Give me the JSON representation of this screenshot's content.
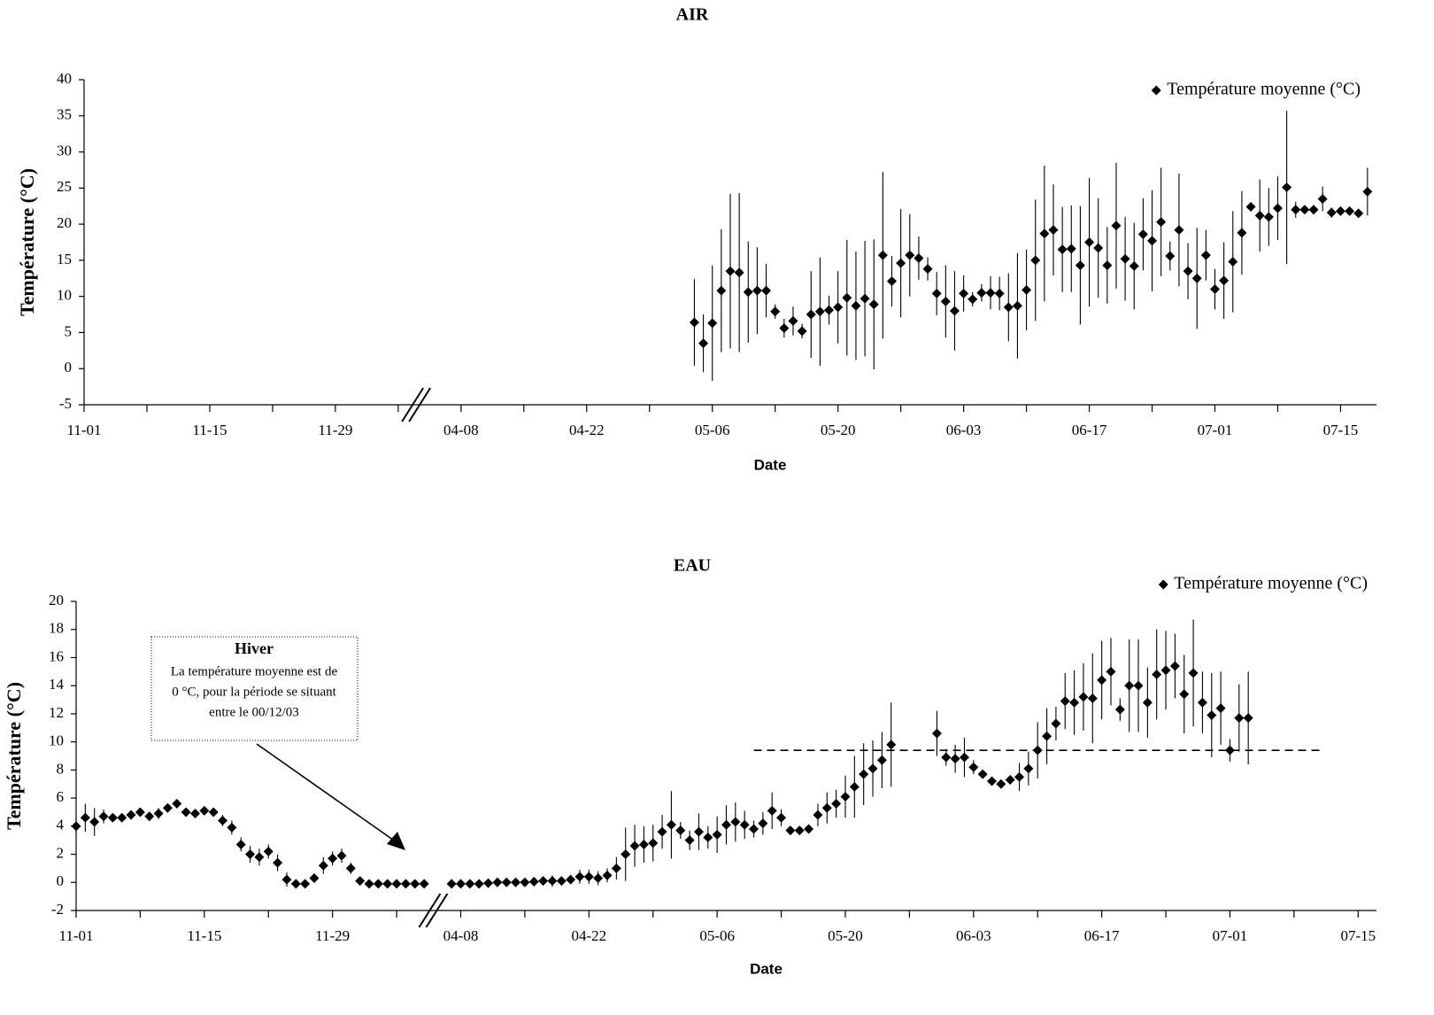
{
  "chart_data": [
    {
      "type": "scatter",
      "title": "AIR",
      "xlabel": "Date",
      "ylabel": "Température (°C)",
      "xlim": [
        "11-01",
        "07-19"
      ],
      "xticks": [
        "11-01",
        "11-15",
        "11-29",
        "04-08",
        "04-22",
        "05-06",
        "05-20",
        "06-03",
        "06-17",
        "07-01",
        "07-15"
      ],
      "axis_break": [
        "12-08",
        "04-03"
      ],
      "ylim": [
        -5,
        40
      ],
      "yticks": [
        -5,
        0,
        5,
        10,
        15,
        20,
        25,
        30,
        35,
        40
      ],
      "grid": false,
      "legend": "upper right",
      "series": [
        {
          "name": "Température moyenne (°C)",
          "color": "#000000",
          "marker": "diamond",
          "x": [
            "05-04",
            "05-05",
            "05-06",
            "05-07",
            "05-08",
            "05-09",
            "05-10",
            "05-11",
            "05-12",
            "05-13",
            "05-14",
            "05-15",
            "05-16",
            "05-17",
            "05-18",
            "05-19",
            "05-20",
            "05-21",
            "05-22",
            "05-23",
            "05-24",
            "05-25",
            "05-26",
            "05-27",
            "05-28",
            "05-29",
            "05-30",
            "05-31",
            "06-01",
            "06-02",
            "06-03",
            "06-04",
            "06-05",
            "06-06",
            "06-07",
            "06-08",
            "06-09",
            "06-10",
            "06-11",
            "06-12",
            "06-13",
            "06-14",
            "06-15",
            "06-16",
            "06-17",
            "06-18",
            "06-19",
            "06-20",
            "06-21",
            "06-22",
            "06-23",
            "06-24",
            "06-25",
            "06-26",
            "06-27",
            "06-28",
            "06-29",
            "06-30",
            "07-01",
            "07-02",
            "07-03",
            "07-04",
            "07-05",
            "07-06",
            "07-07",
            "07-08",
            "07-09",
            "07-10",
            "07-11",
            "07-12",
            "07-13",
            "07-14",
            "07-15",
            "07-16",
            "07-17",
            "07-18"
          ],
          "values": [
            6.4,
            3.5,
            6.3,
            10.8,
            13.5,
            13.3,
            10.6,
            10.8,
            10.8,
            7.9,
            5.6,
            6.6,
            5.2,
            7.5,
            7.9,
            8.1,
            8.5,
            9.8,
            8.7,
            9.7,
            8.9,
            15.7,
            12.1,
            14.6,
            15.7,
            15.3,
            13.8,
            10.4,
            9.3,
            8.0,
            10.4,
            9.6,
            10.5,
            10.5,
            10.4,
            8.5,
            8.7,
            10.9,
            15.0,
            18.7,
            19.2,
            16.5,
            16.6,
            14.3,
            17.5,
            16.7,
            14.3,
            19.8,
            15.2,
            14.2,
            18.6,
            17.7,
            20.3,
            15.6,
            19.2,
            13.5,
            12.5,
            15.7,
            11.0,
            12.2,
            14.8,
            18.8,
            22.4,
            21.2,
            21.0,
            22.2,
            25.1,
            22.0,
            22.0,
            22.0,
            23.5,
            21.6,
            21.8,
            21.8,
            21.5,
            24.5
          ],
          "errors": [
            6,
            4,
            8,
            8.5,
            10.7,
            11,
            7,
            6,
            3.7,
            1,
            1.3,
            2,
            1,
            6,
            7.5,
            2,
            5,
            8,
            7.5,
            8,
            9,
            11.5,
            3.5,
            7.5,
            5.7,
            3,
            1.6,
            3,
            5,
            5.5,
            2.5,
            1,
            1.2,
            2.3,
            2.3,
            4.7,
            7.3,
            5.6,
            8.4,
            9.4,
            6.3,
            5.9,
            6,
            8.2,
            8.9,
            6.9,
            5.3,
            8.7,
            5.8,
            6,
            5,
            7,
            7.5,
            2,
            7.8,
            3.9,
            7,
            3.5,
            2.8,
            5.3,
            7,
            5.8,
            0.5,
            5,
            4,
            4.4,
            10.6,
            1.1,
            0.4,
            0.4,
            1.7,
            0.7,
            0.5,
            0.5,
            0.5,
            3.3
          ]
        }
      ]
    },
    {
      "type": "scatter",
      "title": "EAU",
      "xlabel": "Date",
      "ylabel": "Température (°C)",
      "xlim": [
        "11-01",
        "07-17"
      ],
      "xticks": [
        "11-01",
        "11-15",
        "11-29",
        "04-08",
        "04-22",
        "05-06",
        "05-20",
        "06-03",
        "06-17",
        "07-01",
        "07-15"
      ],
      "axis_break": [
        "12-10",
        "04-05"
      ],
      "ylim": [
        -2,
        20
      ],
      "yticks": [
        -2,
        0,
        2,
        4,
        6,
        8,
        10,
        12,
        14,
        16,
        18,
        20
      ],
      "grid": false,
      "legend": "upper right",
      "reference_line": {
        "value": 9.4,
        "x": [
          "05-10",
          "07-11"
        ],
        "style": "dashed"
      },
      "annotation": {
        "title": "Hiver",
        "lines": [
          "La température moyenne est de",
          "0 °C, pour la période se situant",
          "entre le 00/12/03"
        ]
      },
      "series": [
        {
          "name": "Température moyenne (°C)",
          "color": "#000000",
          "marker": "diamond",
          "x": [
            "11-01",
            "11-02",
            "11-03",
            "11-04",
            "11-05",
            "11-06",
            "11-07",
            "11-08",
            "11-09",
            "11-10",
            "11-11",
            "11-12",
            "11-13",
            "11-14",
            "11-15",
            "11-16",
            "11-17",
            "11-18",
            "11-19",
            "11-20",
            "11-21",
            "11-22",
            "11-23",
            "11-24",
            "11-25",
            "11-26",
            "11-27",
            "11-28",
            "11-29",
            "11-30",
            "12-01",
            "12-02",
            "12-03",
            "12-04",
            "12-05",
            "12-06",
            "12-07",
            "12-08",
            "12-09",
            "04-07",
            "04-08",
            "04-09",
            "04-10",
            "04-11",
            "04-12",
            "04-13",
            "04-14",
            "04-15",
            "04-16",
            "04-17",
            "04-18",
            "04-19",
            "04-20",
            "04-21",
            "04-22",
            "04-23",
            "04-24",
            "04-25",
            "04-26",
            "04-27",
            "04-28",
            "04-29",
            "04-30",
            "05-01",
            "05-02",
            "05-03",
            "05-04",
            "05-05",
            "05-06",
            "05-07",
            "05-08",
            "05-09",
            "05-10",
            "05-11",
            "05-12",
            "05-13",
            "05-14",
            "05-15",
            "05-16",
            "05-17",
            "05-18",
            "05-19",
            "05-20",
            "05-21",
            "05-22",
            "05-23",
            "05-24",
            "05-25",
            "05-26",
            "05-27",
            "05-28",
            "05-29",
            "05-30",
            "05-31",
            "06-01",
            "06-02",
            "06-03",
            "06-04",
            "06-05",
            "06-06",
            "06-07",
            "06-08",
            "06-09",
            "06-10",
            "06-11",
            "06-12",
            "06-13",
            "06-14",
            "06-15",
            "06-16",
            "06-17",
            "06-18",
            "06-19",
            "06-20",
            "06-21",
            "06-22",
            "06-23",
            "06-24",
            "06-25",
            "06-26",
            "06-27",
            "06-28",
            "06-29",
            "06-30",
            "07-01",
            "07-02",
            "07-03"
          ],
          "values": [
            4.0,
            4.6,
            4.3,
            4.7,
            4.6,
            4.6,
            4.8,
            5.0,
            4.7,
            4.9,
            5.3,
            5.6,
            5.0,
            4.9,
            5.1,
            5.0,
            4.4,
            3.9,
            2.7,
            2.0,
            1.8,
            2.2,
            1.4,
            0.2,
            -0.1,
            -0.1,
            0.3,
            1.2,
            1.7,
            1.9,
            1.0,
            0.1,
            -0.1,
            -0.1,
            -0.1,
            -0.1,
            -0.1,
            -0.1,
            -0.1,
            -0.1,
            -0.1,
            -0.1,
            -0.1,
            -0.05,
            0,
            0,
            0,
            0,
            0.05,
            0.1,
            0.1,
            0.1,
            0.2,
            0.4,
            0.4,
            0.3,
            0.5,
            1.0,
            2.0,
            2.6,
            2.7,
            2.8,
            3.6,
            4.1,
            3.7,
            3.0,
            3.6,
            3.2,
            3.4,
            4.1,
            4.3,
            4.1,
            3.8,
            4.2,
            5.1,
            4.6,
            3.7,
            3.7,
            3.8,
            4.8,
            5.3,
            5.6,
            6.1,
            6.8,
            7.7,
            8.1,
            8.7,
            9.8,
            null,
            null,
            null,
            null,
            10.6,
            8.9,
            8.8,
            8.9,
            8.2,
            7.7,
            7.2,
            7.0,
            7.3,
            7.5,
            8.1,
            9.4,
            10.4,
            11.3,
            12.9,
            12.8,
            13.2,
            13.1,
            14.4,
            15.0,
            12.3,
            14.0,
            14.0,
            12.8,
            14.8,
            15.1,
            15.4,
            13.4,
            14.9,
            12.8,
            11.9,
            12.4,
            9.4,
            11.7,
            11.7
          ],
          "errors": [
            0.4,
            1.0,
            1.0,
            0.5,
            0.3,
            0.3,
            0.3,
            0.3,
            0.3,
            0.4,
            0.3,
            0.3,
            0.3,
            0.3,
            0.3,
            0.3,
            0.4,
            0.5,
            0.5,
            0.6,
            0.6,
            0.5,
            0.6,
            0.5,
            0.3,
            0.3,
            0.3,
            0.6,
            0.5,
            0.5,
            0.4,
            0.3,
            0.2,
            0.2,
            0.2,
            0.2,
            0.2,
            0.2,
            0.2,
            0.2,
            0.2,
            0.2,
            0.2,
            0.2,
            0.2,
            0.2,
            0.2,
            0.2,
            0.2,
            0.3,
            0.4,
            0.3,
            0.3,
            0.5,
            0.5,
            0.5,
            0.5,
            0.8,
            1.9,
            1.5,
            1.3,
            1.3,
            1.2,
            2.4,
            0.6,
            0.7,
            1.3,
            0.8,
            1.3,
            1.4,
            1.4,
            1.0,
            0.6,
            0.8,
            1.3,
            0.6,
            0.3,
            0.3,
            0.3,
            0.8,
            1.1,
            1.0,
            1.5,
            2.2,
            2.2,
            2.0,
            2.0,
            3.0,
            null,
            null,
            null,
            null,
            1.6,
            0.6,
            1.0,
            1.4,
            0.5,
            0.3,
            0.3,
            0.3,
            0.3,
            1.0,
            1.2,
            2.0,
            2.0,
            1.2,
            2.0,
            2.3,
            2.4,
            3.2,
            2.8,
            2.4,
            0.8,
            3.3,
            3.3,
            2.5,
            3.2,
            2.8,
            2.3,
            2.8,
            3.8,
            2.2,
            3.0,
            2.6,
            0.8,
            2.4,
            3.3
          ]
        }
      ]
    }
  ]
}
